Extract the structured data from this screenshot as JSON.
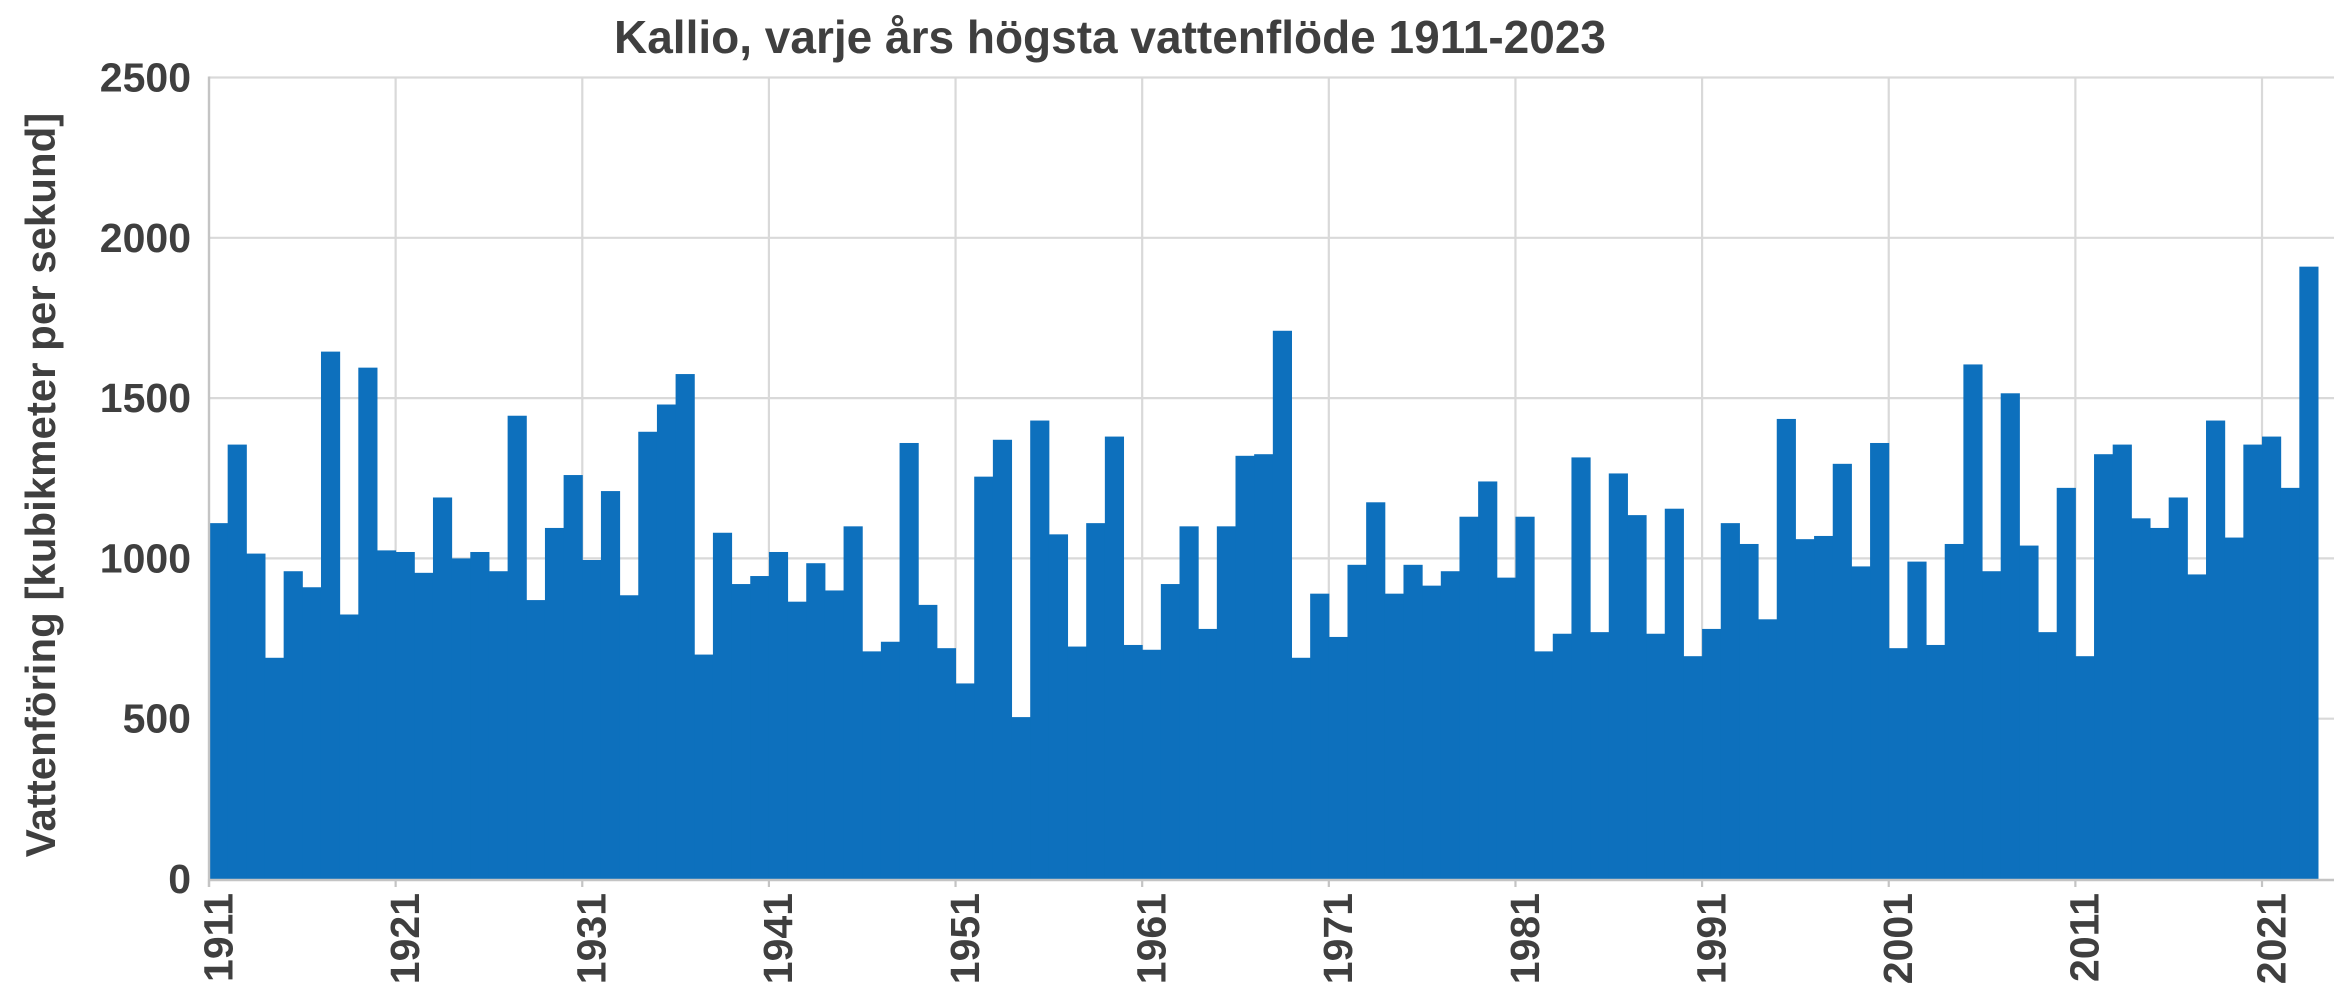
{
  "title": "Kallio, varje års högsta vattenflöde 1911-2023",
  "y_axis": {
    "label": "Vattenföring [kubikmeter per sekund]",
    "ticks": [
      0,
      500,
      1000,
      1500,
      2000,
      2500
    ]
  },
  "x_axis": {
    "tick_labels": [
      "1911",
      "1921",
      "1931",
      "1941",
      "1951",
      "1961",
      "1971",
      "1981",
      "1991",
      "2001",
      "2011",
      "2021"
    ]
  },
  "colors": {
    "bar": "#0d70bd",
    "gridline": "#d9d9d9",
    "axis": "#c4c4c4",
    "text": "#3f3f3f",
    "background": "#ffffff"
  },
  "chart_data": {
    "type": "bar",
    "title": "Kallio, varje års högsta vattenflöde 1911-2023",
    "xlabel": "",
    "ylabel": "Vattenföring [kubikmeter per sekund]",
    "ylim": [
      0,
      2500
    ],
    "grid": true,
    "legend": false,
    "x_start": 1911,
    "x_end": 2023,
    "x_step": 1,
    "values": [
      1110,
      1355,
      1015,
      690,
      960,
      910,
      1645,
      825,
      1595,
      1025,
      1020,
      955,
      1190,
      1000,
      1020,
      960,
      1445,
      870,
      1095,
      1260,
      995,
      1210,
      885,
      1395,
      1480,
      1575,
      700,
      1080,
      920,
      945,
      1020,
      865,
      985,
      900,
      1100,
      710,
      740,
      1360,
      855,
      720,
      610,
      1255,
      1370,
      505,
      1430,
      1075,
      725,
      1110,
      1380,
      730,
      715,
      920,
      1100,
      780,
      1100,
      1320,
      1325,
      1710,
      690,
      890,
      755,
      980,
      1175,
      890,
      980,
      915,
      960,
      1130,
      1240,
      940,
      1130,
      710,
      765,
      1315,
      770,
      1265,
      1135,
      765,
      1155,
      695,
      780,
      1110,
      1045,
      810,
      1435,
      1060,
      1070,
      1295,
      975,
      1360,
      720,
      990,
      730,
      1045,
      1605,
      960,
      1515,
      1040,
      770,
      1220,
      695,
      1325,
      1355,
      1125,
      1095,
      1190,
      950,
      1430,
      1065,
      1355,
      1380,
      1220,
      1910
    ]
  }
}
